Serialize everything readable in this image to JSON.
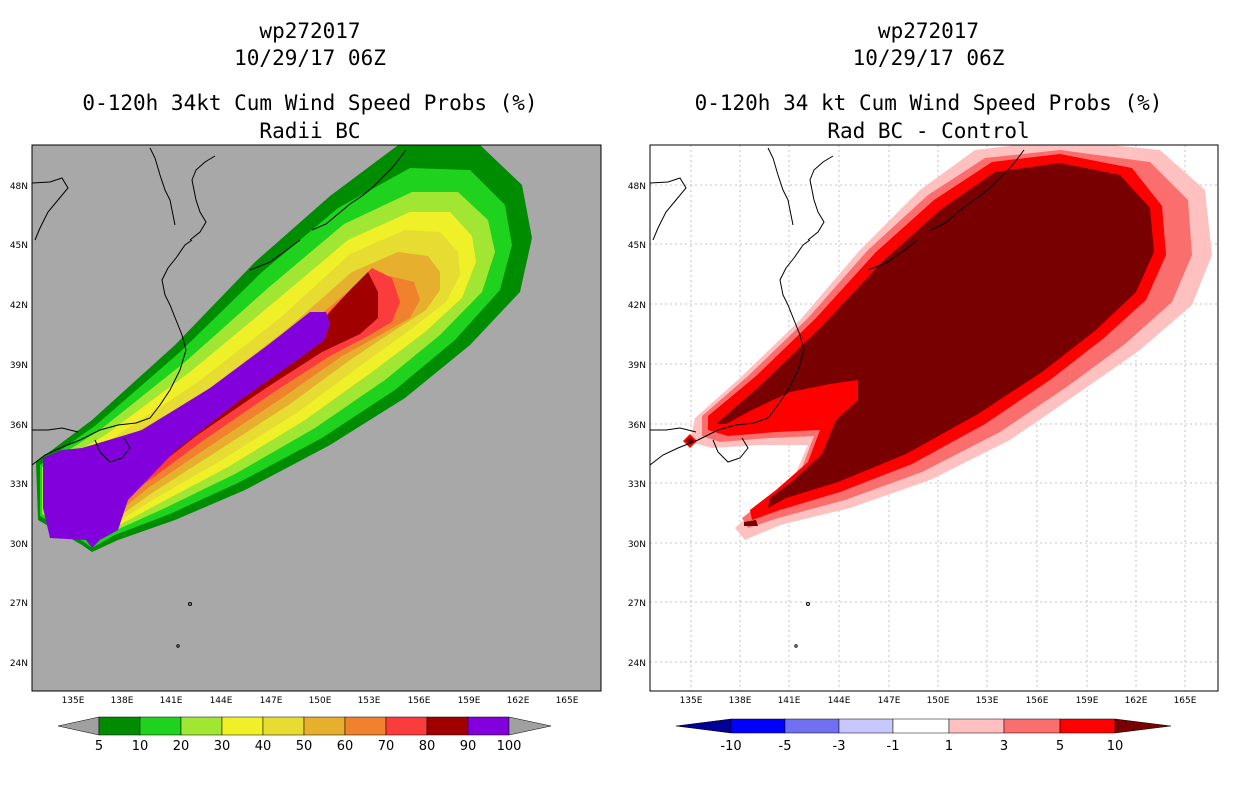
{
  "left_panel": {
    "title_lines": [
      "wp272017",
      "10/29/17 06Z",
      "0-120h 34kt Cum Wind Speed Probs (%)",
      "Radii BC"
    ],
    "colorbar": {
      "colors": [
        "#008c00",
        "#1ed21e",
        "#a0e632",
        "#f0f028",
        "#e6dc32",
        "#e6af2d",
        "#f0822d",
        "#fa3c3c",
        "#a00000",
        "#8200dc"
      ],
      "labels": [
        "5",
        "10",
        "20",
        "30",
        "40",
        "50",
        "60",
        "70",
        "80",
        "90",
        "100"
      ],
      "end_color": "#a0a0a0"
    }
  },
  "right_panel": {
    "title_lines": [
      "wp272017",
      "10/29/17 06Z",
      "0-120h 34 kt Cum Wind Speed Probs (%)",
      "Rad BC - Control"
    ],
    "colorbar": {
      "colors": [
        "#0000ff",
        "#7070f0",
        "#c8c8ff",
        "#ffffff",
        "#ffc0c0",
        "#fa6e6e",
        "#ff0000"
      ],
      "labels": [
        "-10",
        "-5",
        "-3",
        "-1",
        "1",
        "3",
        "5",
        "10"
      ],
      "low_end_color": "#000096",
      "high_end_color": "#780000"
    }
  },
  "axes": {
    "lon_labels": [
      "135E",
      "138E",
      "141E",
      "144E",
      "147E",
      "150E",
      "153E",
      "156E",
      "159E",
      "162E",
      "165E"
    ],
    "lat_labels": [
      "48N",
      "45N",
      "42N",
      "39N",
      "36N",
      "33N",
      "30N",
      "27N",
      "24N"
    ]
  }
}
